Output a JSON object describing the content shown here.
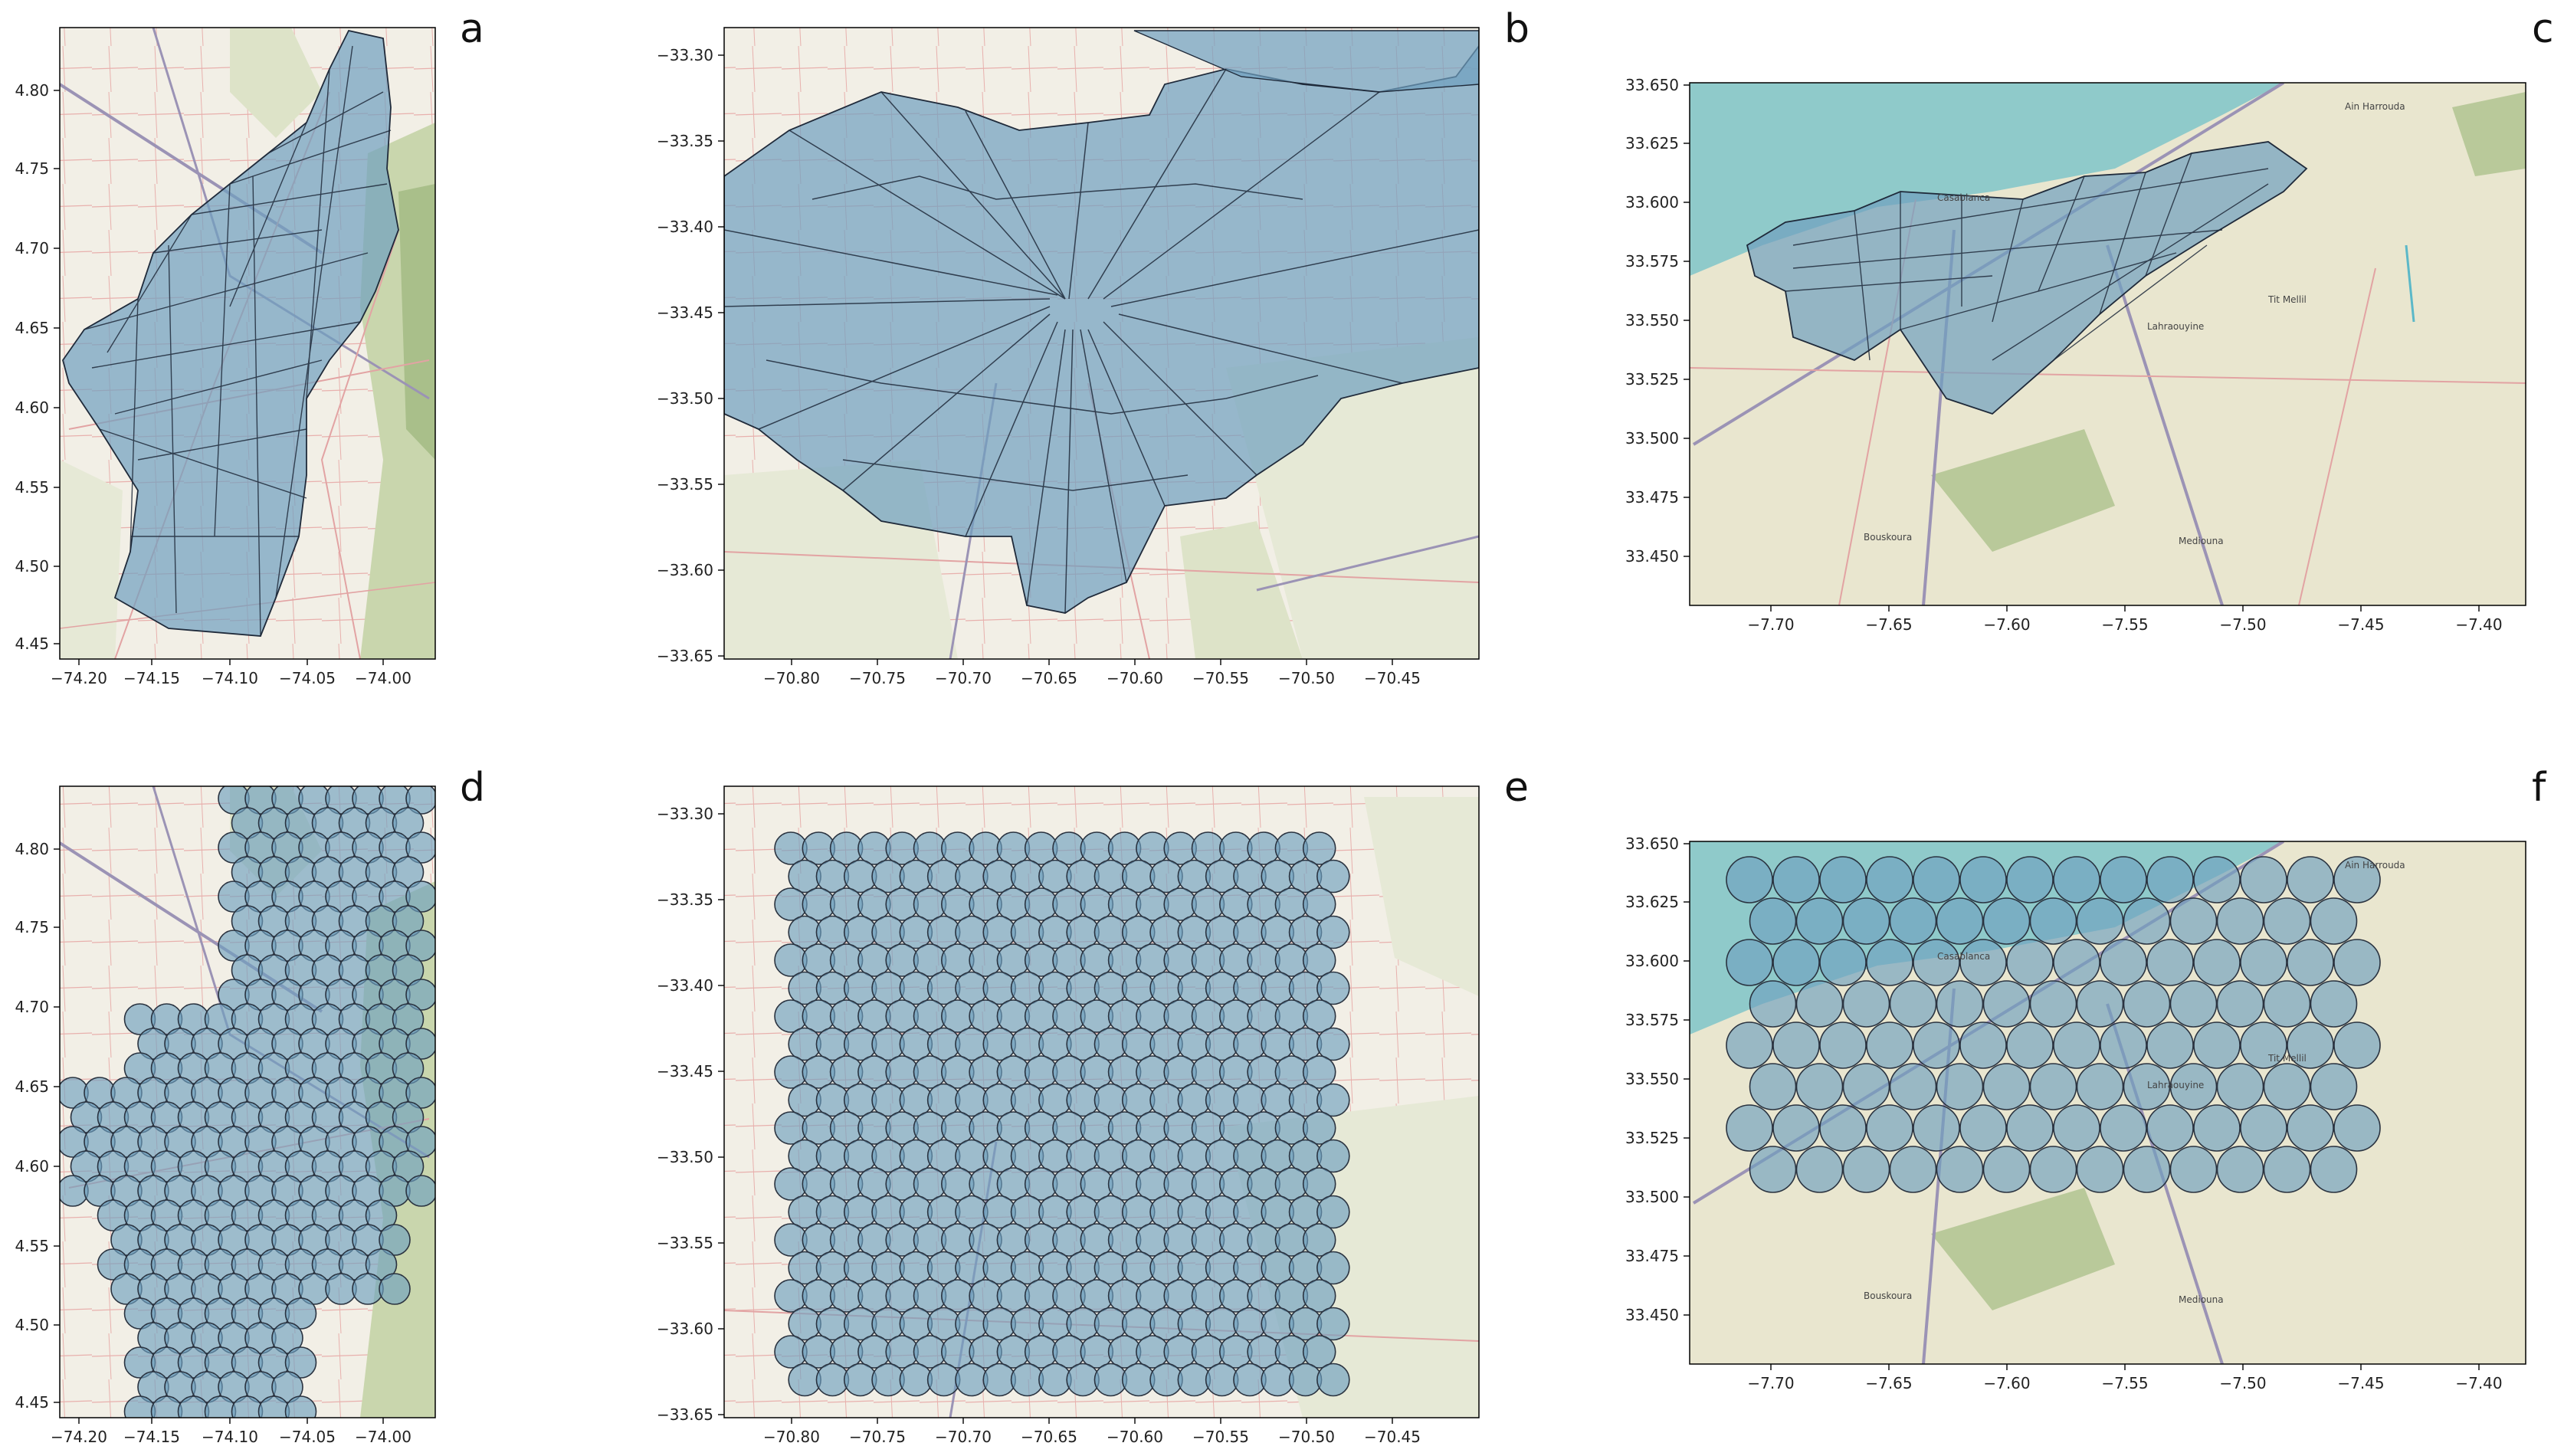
{
  "figure": {
    "panels": [
      {
        "id": "a",
        "letter": "a",
        "xticks": [
          "−74.20",
          "−74.15",
          "−74.10",
          "−74.05",
          "−74.00"
        ],
        "yticks": [
          "4.45",
          "4.50",
          "4.55",
          "4.60",
          "4.65",
          "4.70",
          "4.75",
          "4.80"
        ],
        "overlay": "polygons"
      },
      {
        "id": "b",
        "letter": "b",
        "xticks": [
          "−70.80",
          "−70.75",
          "−70.70",
          "−70.65",
          "−70.60",
          "−70.55",
          "−70.50",
          "−70.45"
        ],
        "yticks": [
          "−33.30",
          "−33.35",
          "−33.40",
          "−33.45",
          "−33.50",
          "−33.55",
          "−33.60",
          "−33.65"
        ],
        "overlay": "polygons"
      },
      {
        "id": "c",
        "letter": "c",
        "xticks": [
          "−7.70",
          "−7.65",
          "−7.60",
          "−7.55",
          "−7.50",
          "−7.45",
          "−7.40"
        ],
        "yticks": [
          "33.650",
          "33.625",
          "33.600",
          "33.575",
          "33.550",
          "33.525",
          "33.500",
          "33.475",
          "33.450"
        ],
        "overlay": "polygons",
        "map_labels": [
          "Ain Harrouda",
          "Casablanca",
          "Lahraouyine",
          "Tit Mellil",
          "Bouskoura",
          "Mediouna"
        ]
      },
      {
        "id": "d",
        "letter": "d",
        "xticks": [
          "−74.20",
          "−74.15",
          "−74.10",
          "−74.05",
          "−74.00"
        ],
        "yticks": [
          "4.45",
          "4.50",
          "4.55",
          "4.60",
          "4.65",
          "4.70",
          "4.75",
          "4.80"
        ],
        "overlay": "circles"
      },
      {
        "id": "e",
        "letter": "e",
        "xticks": [
          "−70.80",
          "−70.75",
          "−70.70",
          "−70.65",
          "−70.60",
          "−70.55",
          "−70.50",
          "−70.45"
        ],
        "yticks": [
          "−33.30",
          "−33.35",
          "−33.40",
          "−33.45",
          "−33.50",
          "−33.55",
          "−33.60",
          "−33.65"
        ],
        "overlay": "circles"
      },
      {
        "id": "f",
        "letter": "f",
        "xticks": [
          "−7.70",
          "−7.65",
          "−7.60",
          "−7.55",
          "−7.50",
          "−7.45",
          "−7.40"
        ],
        "yticks": [
          "33.650",
          "33.625",
          "33.600",
          "33.575",
          "33.550",
          "33.525",
          "33.500",
          "33.475",
          "33.450"
        ],
        "overlay": "circles",
        "map_labels": [
          "Ain Harrouda",
          "Casablanca",
          "Lahraouyine",
          "Tit Mellil",
          "Bouskoura",
          "Mediouna"
        ]
      }
    ]
  },
  "colors": {
    "map_land": "#f2efe6",
    "map_green": "#dde3c8",
    "map_forest": "#b9c99a",
    "map_sea": "#8fcaca",
    "road_major": "#9b93b5",
    "road_minor": "#e2a3a3",
    "overlay_fill": "#6f9fbf",
    "overlay_stroke": "#1f2a3a"
  }
}
